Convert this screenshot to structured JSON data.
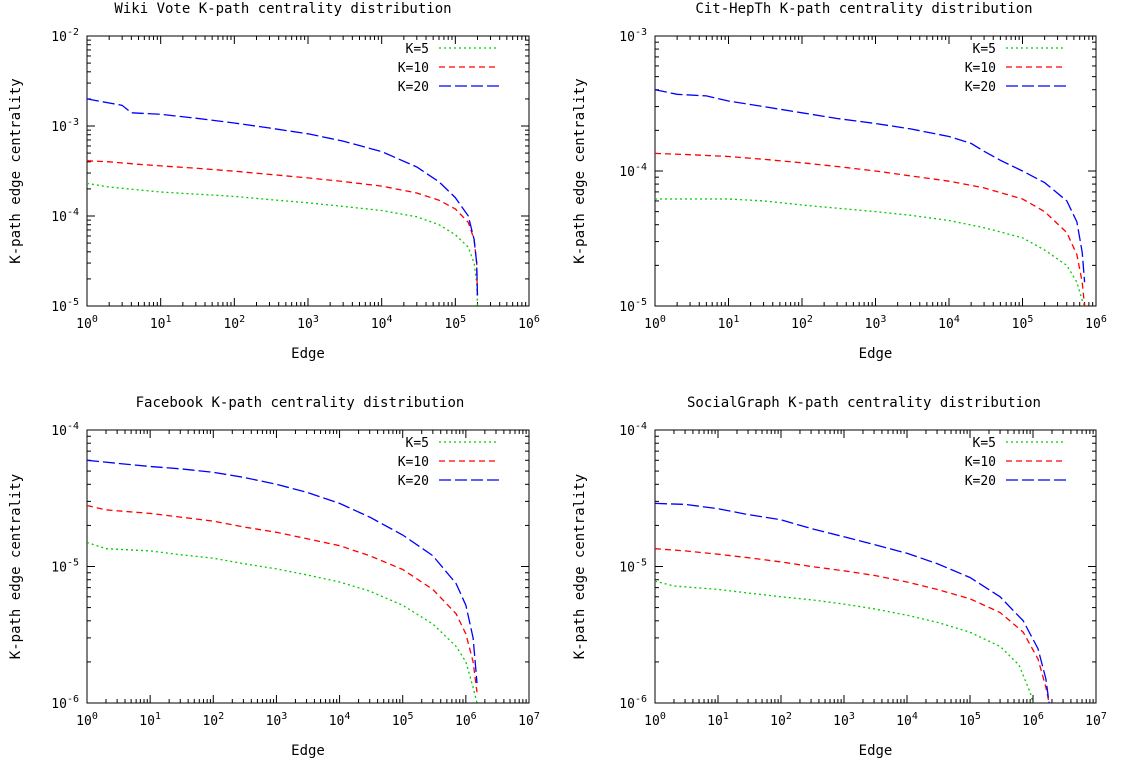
{
  "chart_data": [
    {
      "type": "line",
      "title": "Wiki Vote K-path centrality distribution",
      "xlabel": "Edge",
      "ylabel": "K-path edge centrality",
      "xscale": "log",
      "yscale": "log",
      "xlim": [
        1,
        1000000
      ],
      "ylim": [
        1e-05,
        0.01
      ],
      "xticks": [
        1,
        10,
        100,
        1000,
        10000,
        100000,
        1000000
      ],
      "yticks": [
        1e-05,
        0.0001,
        0.001,
        0.01
      ],
      "legend_position": "top-right",
      "series": [
        {
          "name": "K=5",
          "color": "#00cc00",
          "dash": "dotted",
          "points": [
            [
              1,
              0.00023
            ],
            [
              2,
              0.00021
            ],
            [
              5,
              0.000195
            ],
            [
              10,
              0.000185
            ],
            [
              30,
              0.000175
            ],
            [
              100,
              0.000165
            ],
            [
              300,
              0.000152
            ],
            [
              1000,
              0.00014
            ],
            [
              3000,
              0.000128
            ],
            [
              10000,
              0.000115
            ],
            [
              30000,
              9.8e-05
            ],
            [
              60000,
              8e-05
            ],
            [
              100000,
              6.2e-05
            ],
            [
              150000,
              4.5e-05
            ],
            [
              180000,
              3e-05
            ],
            [
              195000,
              1.8e-05
            ],
            [
              200000,
              1e-05
            ]
          ]
        },
        {
          "name": "K=10",
          "color": "#ff0000",
          "dash": "dashed",
          "points": [
            [
              1,
              0.00041
            ],
            [
              2,
              0.0004
            ],
            [
              5,
              0.000375
            ],
            [
              10,
              0.00036
            ],
            [
              30,
              0.00034
            ],
            [
              100,
              0.000315
            ],
            [
              300,
              0.00029
            ],
            [
              1000,
              0.000265
            ],
            [
              3000,
              0.000242
            ],
            [
              10000,
              0.000215
            ],
            [
              30000,
              0.00018
            ],
            [
              60000,
              0.00015
            ],
            [
              100000,
              0.00012
            ],
            [
              150000,
              8.5e-05
            ],
            [
              180000,
              5.5e-05
            ],
            [
              195000,
              3e-05
            ],
            [
              200000,
              1.2e-05
            ]
          ]
        },
        {
          "name": "K=20",
          "color": "#0000ff",
          "dash": "longdash",
          "points": [
            [
              1,
              0.002
            ],
            [
              2,
              0.0018
            ],
            [
              3,
              0.0017
            ],
            [
              4,
              0.0014
            ],
            [
              10,
              0.00135
            ],
            [
              30,
              0.00122
            ],
            [
              100,
              0.00108
            ],
            [
              300,
              0.00095
            ],
            [
              1000,
              0.00082
            ],
            [
              3000,
              0.00068
            ],
            [
              10000,
              0.00052
            ],
            [
              30000,
              0.00035
            ],
            [
              60000,
              0.00024
            ],
            [
              100000,
              0.00016
            ],
            [
              150000,
              0.0001
            ],
            [
              180000,
              5.5e-05
            ],
            [
              195000,
              3e-05
            ],
            [
              200000,
              1.3e-05
            ]
          ]
        }
      ]
    },
    {
      "type": "line",
      "title": "Cit-HepTh K-path centrality distribution",
      "xlabel": "Edge",
      "ylabel": "K-path edge centrality",
      "xscale": "log",
      "yscale": "log",
      "xlim": [
        1,
        1000000
      ],
      "ylim": [
        1e-05,
        0.001
      ],
      "xticks": [
        1,
        10,
        100,
        1000,
        10000,
        100000,
        1000000
      ],
      "yticks": [
        1e-05,
        0.0001,
        0.001
      ],
      "legend_position": "top-right",
      "series": [
        {
          "name": "K=5",
          "color": "#00cc00",
          "dash": "dotted",
          "points": [
            [
              1,
              6.2e-05
            ],
            [
              10,
              6.2e-05
            ],
            [
              30,
              6e-05
            ],
            [
              100,
              5.6e-05
            ],
            [
              300,
              5.3e-05
            ],
            [
              1000,
              5e-05
            ],
            [
              3000,
              4.7e-05
            ],
            [
              10000,
              4.3e-05
            ],
            [
              30000,
              3.8e-05
            ],
            [
              100000,
              3.2e-05
            ],
            [
              200000,
              2.6e-05
            ],
            [
              400000,
              2e-05
            ],
            [
              550000,
              1.5e-05
            ],
            [
              650000,
              1.1e-05
            ],
            [
              700000,
              1e-05
            ]
          ]
        },
        {
          "name": "K=10",
          "color": "#ff0000",
          "dash": "dashed",
          "points": [
            [
              1,
              0.000135
            ],
            [
              3,
              0.000132
            ],
            [
              10,
              0.000128
            ],
            [
              30,
              0.000122
            ],
            [
              100,
              0.000115
            ],
            [
              300,
              0.000108
            ],
            [
              1000,
              0.0001
            ],
            [
              3000,
              9.2e-05
            ],
            [
              10000,
              8.4e-05
            ],
            [
              30000,
              7.5e-05
            ],
            [
              100000,
              6.2e-05
            ],
            [
              200000,
              5e-05
            ],
            [
              400000,
              3.5e-05
            ],
            [
              550000,
              2.4e-05
            ],
            [
              650000,
              1.5e-05
            ],
            [
              700000,
              1e-05
            ]
          ]
        },
        {
          "name": "K=20",
          "color": "#0000ff",
          "dash": "longdash",
          "points": [
            [
              1,
              0.0004
            ],
            [
              2,
              0.00037
            ],
            [
              5,
              0.00036
            ],
            [
              10,
              0.00033
            ],
            [
              30,
              0.0003
            ],
            [
              100,
              0.00027
            ],
            [
              300,
              0.000245
            ],
            [
              1000,
              0.000225
            ],
            [
              3000,
              0.000205
            ],
            [
              10000,
              0.00018
            ],
            [
              20000,
              0.00016
            ],
            [
              30000,
              0.00014
            ],
            [
              50000,
              0.00012
            ],
            [
              100000,
              0.0001
            ],
            [
              200000,
              8.2e-05
            ],
            [
              400000,
              6e-05
            ],
            [
              550000,
              4.2e-05
            ],
            [
              650000,
              2.5e-05
            ],
            [
              700000,
              1.5e-05
            ]
          ]
        }
      ]
    },
    {
      "type": "line",
      "title": "Facebook K-path centrality distribution",
      "xlabel": "Edge",
      "ylabel": "K-path edge centrality",
      "xscale": "log",
      "yscale": "log",
      "xlim": [
        1,
        10000000
      ],
      "ylim": [
        1e-06,
        0.0001
      ],
      "xticks": [
        1,
        10,
        100,
        1000,
        10000,
        100000,
        1000000,
        10000000
      ],
      "yticks": [
        1e-06,
        1e-05,
        0.0001
      ],
      "legend_position": "top-right",
      "series": [
        {
          "name": "K=5",
          "color": "#00cc00",
          "dash": "dotted",
          "points": [
            [
              1,
              1.5e-05
            ],
            [
              2,
              1.35e-05
            ],
            [
              10,
              1.3e-05
            ],
            [
              30,
              1.22e-05
            ],
            [
              100,
              1.15e-05
            ],
            [
              300,
              1.05e-05
            ],
            [
              1000,
              9.6e-06
            ],
            [
              3000,
              8.7e-06
            ],
            [
              10000,
              7.7e-06
            ],
            [
              30000,
              6.6e-06
            ],
            [
              100000,
              5.2e-06
            ],
            [
              300000,
              3.8e-06
            ],
            [
              700000,
              2.6e-06
            ],
            [
              1000000,
              2e-06
            ],
            [
              1300000,
              1.3e-06
            ],
            [
              1500000,
              1e-06
            ]
          ]
        },
        {
          "name": "K=10",
          "color": "#ff0000",
          "dash": "dashed",
          "points": [
            [
              1,
              2.8e-05
            ],
            [
              2,
              2.6e-05
            ],
            [
              10,
              2.45e-05
            ],
            [
              30,
              2.3e-05
            ],
            [
              100,
              2.15e-05
            ],
            [
              300,
              1.95e-05
            ],
            [
              1000,
              1.78e-05
            ],
            [
              3000,
              1.6e-05
            ],
            [
              10000,
              1.42e-05
            ],
            [
              30000,
              1.2e-05
            ],
            [
              100000,
              9.5e-06
            ],
            [
              300000,
              6.8e-06
            ],
            [
              700000,
              4.5e-06
            ],
            [
              1000000,
              3.2e-06
            ],
            [
              1300000,
              2e-06
            ],
            [
              1500000,
              1.2e-06
            ]
          ]
        },
        {
          "name": "K=20",
          "color": "#0000ff",
          "dash": "longdash",
          "points": [
            [
              1,
              6e-05
            ],
            [
              3,
              5.7e-05
            ],
            [
              10,
              5.4e-05
            ],
            [
              30,
              5.2e-05
            ],
            [
              100,
              4.9e-05
            ],
            [
              300,
              4.5e-05
            ],
            [
              1000,
              4e-05
            ],
            [
              3000,
              3.5e-05
            ],
            [
              10000,
              2.9e-05
            ],
            [
              30000,
              2.3e-05
            ],
            [
              100000,
              1.7e-05
            ],
            [
              300000,
              1.2e-05
            ],
            [
              700000,
              7.5e-06
            ],
            [
              1000000,
              5.2e-06
            ],
            [
              1300000,
              3e-06
            ],
            [
              1500000,
              1.4e-06
            ]
          ]
        }
      ]
    },
    {
      "type": "line",
      "title": "SocialGraph K-path centrality distribution",
      "xlabel": "Edge",
      "ylabel": "K-path edge centrality",
      "xscale": "log",
      "yscale": "log",
      "xlim": [
        1,
        10000000
      ],
      "ylim": [
        1e-06,
        0.0001
      ],
      "xticks": [
        1,
        10,
        100,
        1000,
        10000,
        100000,
        1000000,
        10000000
      ],
      "yticks": [
        1e-06,
        1e-05,
        0.0001
      ],
      "legend_position": "top-right",
      "series": [
        {
          "name": "K=5",
          "color": "#00cc00",
          "dash": "dotted",
          "points": [
            [
              1,
              7.8e-06
            ],
            [
              2,
              7.2e-06
            ],
            [
              10,
              6.8e-06
            ],
            [
              30,
              6.4e-06
            ],
            [
              100,
              6e-06
            ],
            [
              300,
              5.7e-06
            ],
            [
              1000,
              5.3e-06
            ],
            [
              3000,
              4.9e-06
            ],
            [
              10000,
              4.4e-06
            ],
            [
              30000,
              3.9e-06
            ],
            [
              100000,
              3.3e-06
            ],
            [
              300000,
              2.6e-06
            ],
            [
              600000,
              1.9e-06
            ],
            [
              900000,
              1.2e-06
            ],
            [
              1000000,
              1e-06
            ]
          ]
        },
        {
          "name": "K=10",
          "color": "#ff0000",
          "dash": "dashed",
          "points": [
            [
              1,
              1.35e-05
            ],
            [
              3,
              1.3e-05
            ],
            [
              10,
              1.23e-05
            ],
            [
              30,
              1.16e-05
            ],
            [
              100,
              1.08e-05
            ],
            [
              300,
              1e-05
            ],
            [
              1000,
              9.3e-06
            ],
            [
              3000,
              8.6e-06
            ],
            [
              10000,
              7.7e-06
            ],
            [
              30000,
              6.8e-06
            ],
            [
              100000,
              5.8e-06
            ],
            [
              300000,
              4.6e-06
            ],
            [
              700000,
              3.3e-06
            ],
            [
              1200000,
              2.1e-06
            ],
            [
              1600000,
              1.3e-06
            ],
            [
              1800000,
              1e-06
            ]
          ]
        },
        {
          "name": "K=20",
          "color": "#0000ff",
          "dash": "longdash",
          "points": [
            [
              1,
              2.9e-05
            ],
            [
              3,
              2.85e-05
            ],
            [
              10,
              2.65e-05
            ],
            [
              30,
              2.4e-05
            ],
            [
              100,
              2.2e-05
            ],
            [
              300,
              1.9e-05
            ],
            [
              1000,
              1.65e-05
            ],
            [
              3000,
              1.45e-05
            ],
            [
              10000,
              1.25e-05
            ],
            [
              30000,
              1.05e-05
            ],
            [
              100000,
              8.3e-06
            ],
            [
              300000,
              6e-06
            ],
            [
              700000,
              4e-06
            ],
            [
              1200000,
              2.5e-06
            ],
            [
              1600000,
              1.5e-06
            ],
            [
              1800000,
              1e-06
            ]
          ]
        }
      ]
    }
  ]
}
